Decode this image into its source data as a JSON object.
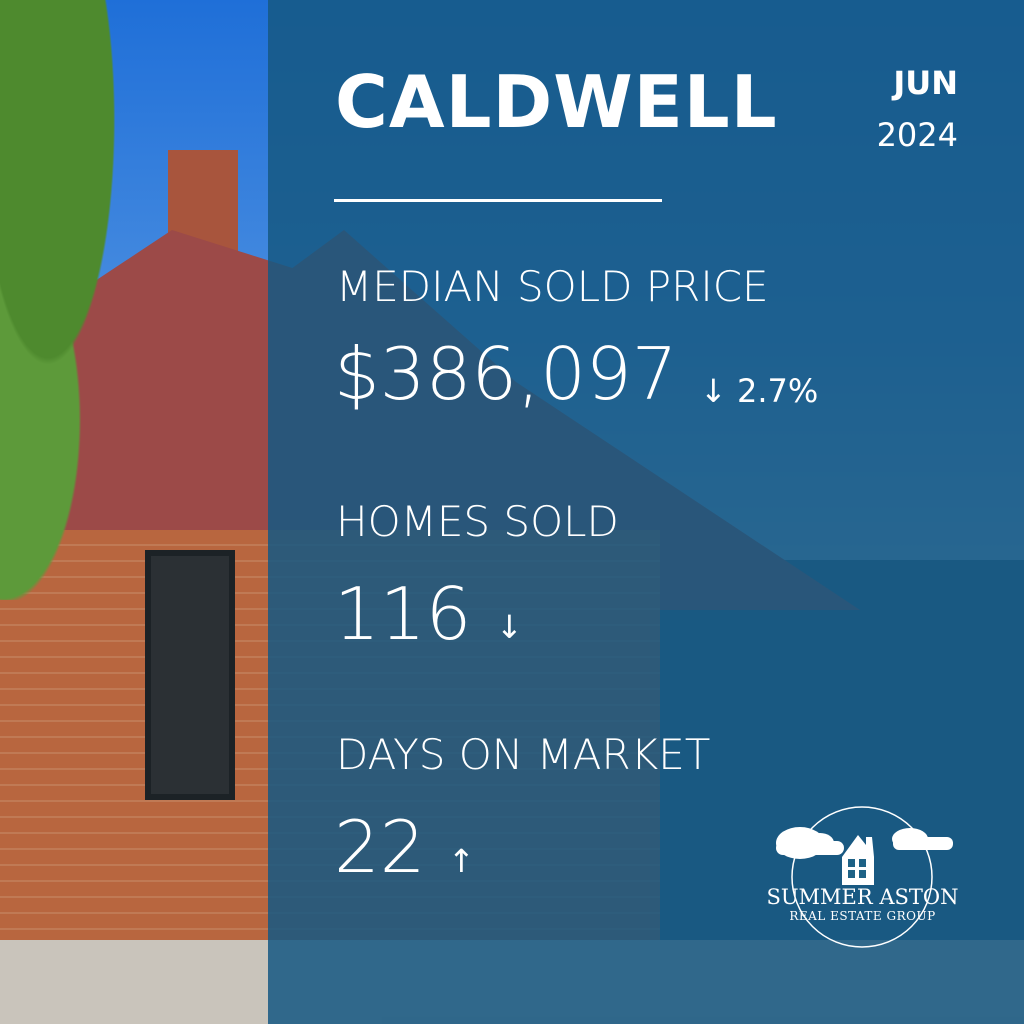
{
  "city": "CALDWELL",
  "period": {
    "month": "JUN",
    "year": "2024"
  },
  "stats": [
    {
      "label": "MEDIAN SOLD PRICE",
      "value": "$386,097",
      "change": "↓ 2.7%",
      "direction": "down"
    },
    {
      "label": "HOMES SOLD",
      "value": "116",
      "change": "↓",
      "direction": "down"
    },
    {
      "label": "DAYS ON MARKET",
      "value": "22",
      "change": "↑",
      "direction": "up"
    }
  ],
  "logo": {
    "line1": "SUMMER ASTON",
    "line2": "REAL ESTATE GROUP"
  },
  "colors": {
    "overlay": "#165882",
    "text": "#ffffff"
  }
}
